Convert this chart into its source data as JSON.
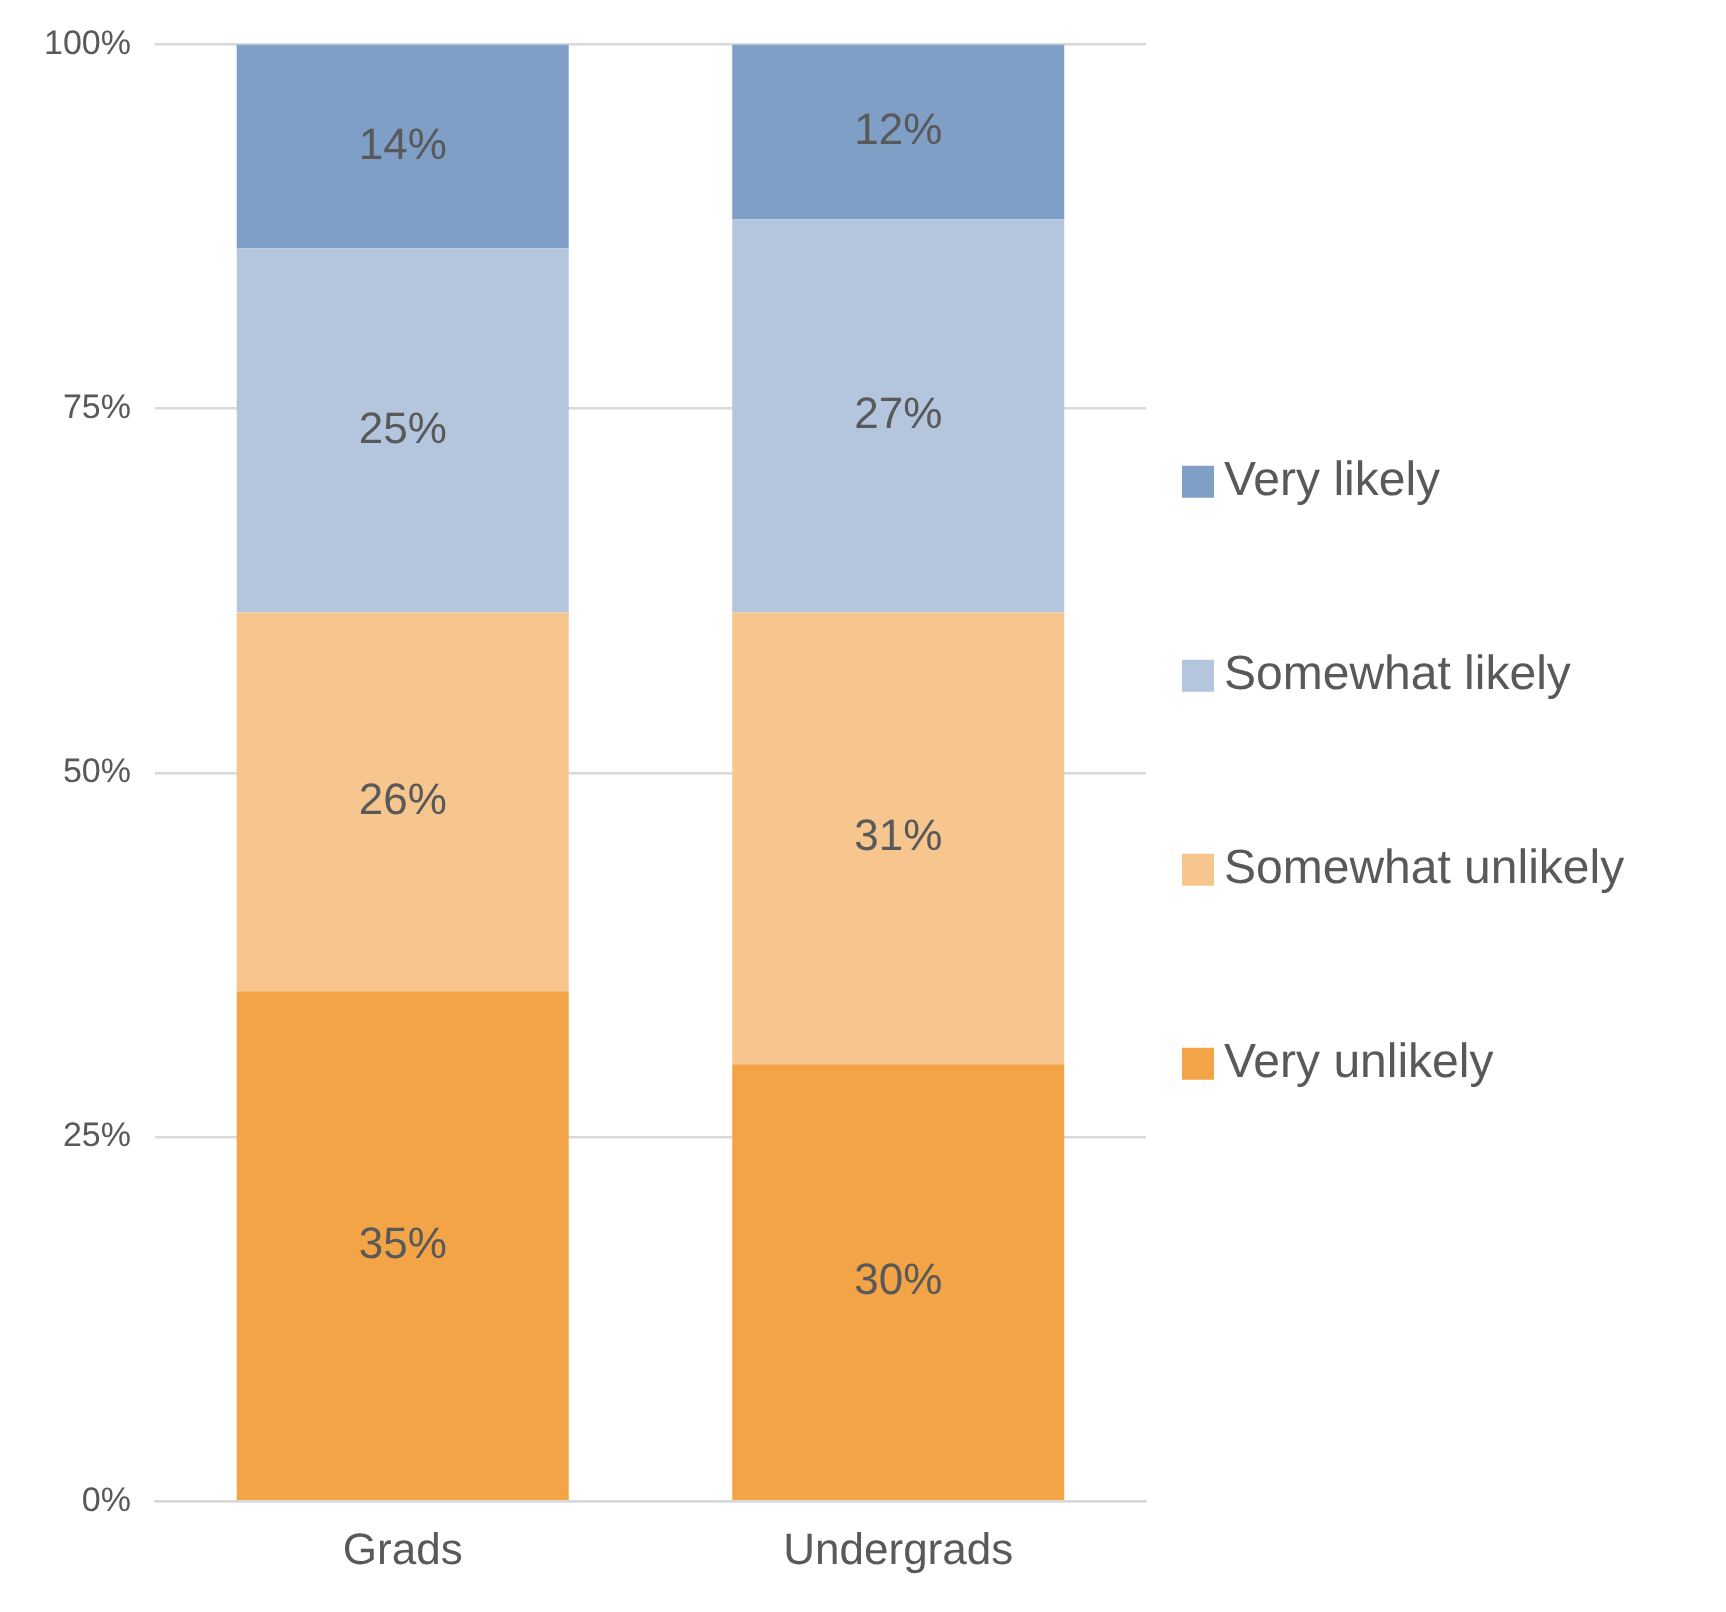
{
  "chart_data": {
    "type": "bar",
    "stacked": true,
    "categories": [
      "Grads",
      "Undergrads"
    ],
    "series": [
      {
        "name": "Very unlikely",
        "color": "#f2a446",
        "values": [
          35,
          30
        ],
        "value_labels": [
          "35%",
          "30%"
        ]
      },
      {
        "name": "Somewhat unlikely",
        "color": "#f6c68e",
        "values": [
          26,
          31
        ],
        "value_labels": [
          "26%",
          "31%"
        ]
      },
      {
        "name": "Somewhat likely",
        "color": "#b3c6de",
        "values": [
          25,
          27
        ],
        "value_labels": [
          "25%",
          "27%"
        ]
      },
      {
        "name": "Very likely",
        "color": "#7f9fc6",
        "values": [
          14,
          12
        ],
        "value_labels": [
          "14%",
          "12%"
        ]
      }
    ],
    "ylim": [
      0,
      100
    ],
    "yticks": [
      {
        "value": 0,
        "label": "0%"
      },
      {
        "value": 25,
        "label": "25%"
      },
      {
        "value": 50,
        "label": "50%"
      },
      {
        "value": 75,
        "label": "75%"
      },
      {
        "value": 100,
        "label": "100%"
      }
    ],
    "grid": "y",
    "legend": "right"
  }
}
